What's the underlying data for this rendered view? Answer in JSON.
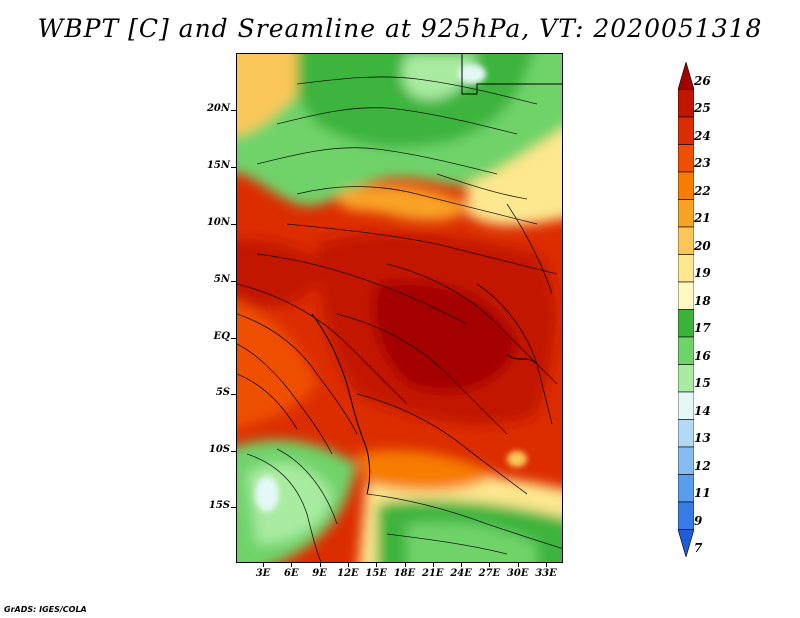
{
  "title": "WBPT [C] and Sreamline at 925hPa, VT: 2020051318",
  "credit": "GrADS: IGES/COLA",
  "map": {
    "lat_ticks": [
      "20N",
      "15N",
      "10N",
      "5N",
      "EQ",
      "5S",
      "10S",
      "15S"
    ],
    "lon_ticks": [
      "3E",
      "6E",
      "9E",
      "12E",
      "15E",
      "18E",
      "21E",
      "24E",
      "27E",
      "30E",
      "33E"
    ]
  },
  "colorbar": {
    "levels": [
      {
        "label": "26",
        "color": "#a50000"
      },
      {
        "label": "25",
        "color": "#c21500"
      },
      {
        "label": "24",
        "color": "#dc2d00"
      },
      {
        "label": "23",
        "color": "#ef4f00"
      },
      {
        "label": "22",
        "color": "#f77d00"
      },
      {
        "label": "21",
        "color": "#f9a325"
      },
      {
        "label": "20",
        "color": "#fbc75a"
      },
      {
        "label": "19",
        "color": "#fde78f"
      },
      {
        "label": "18",
        "color": "#fff8c2"
      },
      {
        "label": "17",
        "color": "#3cb43c"
      },
      {
        "label": "16",
        "color": "#6fd36a"
      },
      {
        "label": "15",
        "color": "#a9eba0"
      },
      {
        "label": "14",
        "color": "#e3f8f7"
      },
      {
        "label": "13",
        "color": "#b4d8f6"
      },
      {
        "label": "12",
        "color": "#87bcf2"
      },
      {
        "label": "11",
        "color": "#5c9ced"
      },
      {
        "label": "9",
        "color": "#367be6"
      },
      {
        "label": "7",
        "color": "#1e5fd9"
      }
    ]
  }
}
